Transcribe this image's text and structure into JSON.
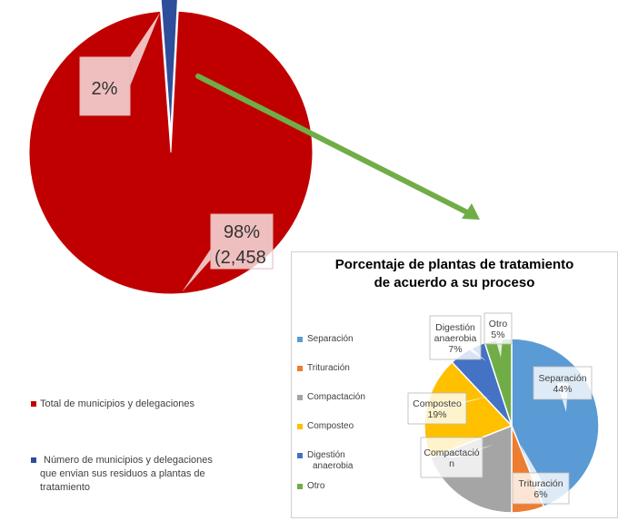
{
  "colors": {
    "red": "#c00000",
    "navy": "#2e4d9a",
    "green": "#70ad47",
    "blue": "#5b9bd5",
    "orange": "#ed7d31",
    "gray": "#a5a5a5",
    "yellow": "#ffc000",
    "darkblue": "#4472c4",
    "pink": "#f4c2c4"
  },
  "chart_data": [
    {
      "type": "pie",
      "title": "",
      "slices": [
        {
          "name": "Total de municipios y delegaciones",
          "value": 98,
          "label": "98%",
          "label2": "(2,458"
        },
        {
          "name": "Número de municipios y delegaciones que envian sus residuos a plantas de tratamiento",
          "value": 2,
          "label": "2%"
        }
      ],
      "legend": {
        "placement": "bottom-left",
        "entries": [
          "Total de municipios y delegaciones",
          "Número de municipios y delegaciones que envian sus residuos a plantas de tratamiento"
        ],
        "entry_lines": [
          [
            "Total de municipios y delegaciones"
          ],
          [
            "Número de municipios y delegaciones",
            "que envian sus residuos a plantas de",
            "tratamiento"
          ]
        ]
      }
    },
    {
      "type": "pie",
      "title": "Porcentaje de plantas de tratamiento de acuerdo a su proceso",
      "title_lines": [
        "Porcentaje de plantas de tratamiento",
        "de acuerdo a su proceso"
      ],
      "slices": [
        {
          "name": "Separación",
          "value": 44,
          "label": [
            "Separación",
            "44%"
          ]
        },
        {
          "name": "Trituración",
          "value": 6,
          "label": [
            "Trituración",
            "6%"
          ]
        },
        {
          "name": "Compactación",
          "value": 19,
          "label": [
            "Compactació",
            "n"
          ]
        },
        {
          "name": "Composteo",
          "value": 19,
          "label": [
            "Composteo",
            "19%"
          ]
        },
        {
          "name": "Digestión anaerobia",
          "value": 7,
          "label": [
            "Digestión",
            "anaerobia",
            "7%"
          ]
        },
        {
          "name": "Otro",
          "value": 5,
          "label": [
            "Otro",
            "5%"
          ]
        }
      ],
      "legend": {
        "placement": "left",
        "entries": [
          "Separación",
          "Trituración",
          "Compactación",
          "Composteo",
          "Digestión anaerobia",
          "Otro"
        ],
        "entry_lines": [
          [
            "Separación"
          ],
          [
            "Trituración"
          ],
          [
            "Compactación"
          ],
          [
            "Composteo"
          ],
          [
            "Digestión",
            "anaerobia"
          ],
          [
            "Otro"
          ]
        ]
      }
    }
  ]
}
